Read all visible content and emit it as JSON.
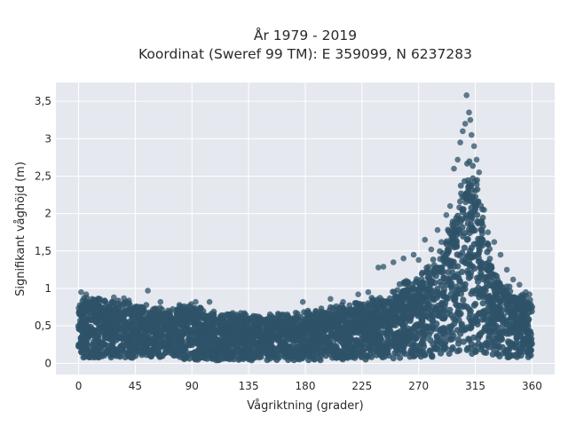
{
  "chart_data": {
    "type": "scatter",
    "title_line1": "År 1979 - 2019",
    "title_line2": "Koordinat (Sweref 99 TM): E 359099, N 6237283",
    "xlabel": "Vågriktning (grader)",
    "ylabel": "Signifikant våghöjd (m)",
    "xlim": [
      -18,
      378
    ],
    "ylim": [
      -0.15,
      3.75
    ],
    "x_ticks": [
      0,
      45,
      90,
      135,
      180,
      225,
      270,
      315,
      360
    ],
    "x_tick_labels": [
      "0",
      "45",
      "90",
      "135",
      "180",
      "225",
      "270",
      "315",
      "360"
    ],
    "y_ticks": [
      0,
      0.5,
      1,
      1.5,
      2,
      2.5,
      3,
      3.5
    ],
    "y_tick_labels": [
      "0",
      "0,5",
      "1",
      "1,5",
      "2",
      "2,5",
      "3",
      "3,5"
    ],
    "grid": true,
    "legend": "none",
    "background_color": "#e5e8ef",
    "grid_color": "#ffffff",
    "marker_color": "#2e5268",
    "envelope": {
      "x": [
        0,
        5,
        15,
        30,
        45,
        60,
        75,
        90,
        105,
        120,
        135,
        150,
        165,
        180,
        195,
        210,
        225,
        240,
        255,
        270,
        280,
        290,
        300,
        305,
        310,
        315,
        320,
        325,
        330,
        340,
        350,
        360
      ],
      "lower": [
        0.05,
        0.05,
        0.06,
        0.07,
        0.07,
        0.06,
        0.06,
        0.05,
        0.04,
        0.04,
        0.04,
        0.04,
        0.04,
        0.04,
        0.04,
        0.05,
        0.05,
        0.06,
        0.07,
        0.08,
        0.08,
        0.09,
        0.1,
        0.1,
        0.1,
        0.1,
        0.1,
        0.1,
        0.09,
        0.08,
        0.07,
        0.06
      ],
      "upper": [
        0.72,
        0.82,
        0.78,
        0.75,
        0.72,
        0.68,
        0.66,
        0.72,
        0.62,
        0.6,
        0.6,
        0.6,
        0.6,
        0.62,
        0.68,
        0.7,
        0.75,
        0.82,
        0.95,
        1.05,
        1.2,
        1.45,
        1.9,
        2.25,
        2.45,
        2.3,
        1.9,
        1.45,
        1.15,
        0.95,
        0.85,
        0.8
      ]
    },
    "outliers": [
      {
        "x": 2,
        "y": 0.95
      },
      {
        "x": 6,
        "y": 0.92
      },
      {
        "x": 12,
        "y": 0.85
      },
      {
        "x": 28,
        "y": 0.88
      },
      {
        "x": 36,
        "y": 0.87
      },
      {
        "x": 40,
        "y": 0.84
      },
      {
        "x": 55,
        "y": 0.97
      },
      {
        "x": 65,
        "y": 0.82
      },
      {
        "x": 80,
        "y": 0.78
      },
      {
        "x": 93,
        "y": 0.82
      },
      {
        "x": 104,
        "y": 0.82
      },
      {
        "x": 178,
        "y": 0.82
      },
      {
        "x": 200,
        "y": 0.86
      },
      {
        "x": 210,
        "y": 0.82
      },
      {
        "x": 222,
        "y": 0.92
      },
      {
        "x": 230,
        "y": 0.95
      },
      {
        "x": 238,
        "y": 1.28
      },
      {
        "x": 242,
        "y": 1.29
      },
      {
        "x": 250,
        "y": 1.35
      },
      {
        "x": 258,
        "y": 1.4
      },
      {
        "x": 266,
        "y": 1.45
      },
      {
        "x": 270,
        "y": 1.38
      },
      {
        "x": 275,
        "y": 1.65
      },
      {
        "x": 280,
        "y": 1.52
      },
      {
        "x": 285,
        "y": 1.78
      },
      {
        "x": 288,
        "y": 1.62
      },
      {
        "x": 292,
        "y": 1.98
      },
      {
        "x": 295,
        "y": 2.1
      },
      {
        "x": 298,
        "y": 2.6
      },
      {
        "x": 301,
        "y": 2.72
      },
      {
        "x": 303,
        "y": 2.95
      },
      {
        "x": 305,
        "y": 3.1
      },
      {
        "x": 307,
        "y": 3.2
      },
      {
        "x": 308,
        "y": 3.58
      },
      {
        "x": 310,
        "y": 3.35
      },
      {
        "x": 311,
        "y": 3.25
      },
      {
        "x": 312,
        "y": 3.05
      },
      {
        "x": 314,
        "y": 2.9
      },
      {
        "x": 316,
        "y": 2.72
      },
      {
        "x": 318,
        "y": 2.55
      },
      {
        "x": 322,
        "y": 2.05
      },
      {
        "x": 325,
        "y": 1.75
      },
      {
        "x": 330,
        "y": 1.62
      },
      {
        "x": 335,
        "y": 1.45
      },
      {
        "x": 340,
        "y": 1.25
      },
      {
        "x": 345,
        "y": 1.12
      },
      {
        "x": 350,
        "y": 1.05
      },
      {
        "x": 355,
        "y": 0.95
      },
      {
        "x": 358,
        "y": 0.92
      }
    ]
  }
}
